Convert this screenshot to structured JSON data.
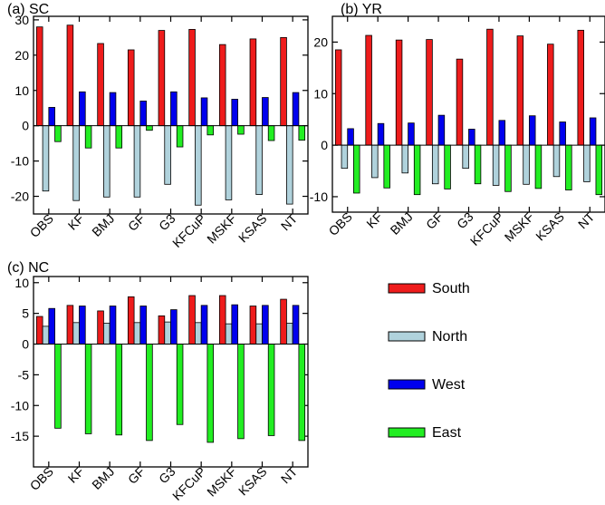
{
  "chart_data": [
    {
      "type": "bar",
      "title": "(a) SC",
      "categories": [
        "OBS",
        "KF",
        "BMJ",
        "GF",
        "G3",
        "KFCuP",
        "MSKF",
        "KSAS",
        "NT"
      ],
      "ylim": [
        -25,
        31
      ],
      "yticks": [
        -20,
        -10,
        0,
        10,
        20,
        30
      ],
      "series": [
        {
          "name": "South",
          "values": [
            28,
            28.5,
            23.3,
            21.5,
            27,
            27.3,
            23,
            24.6,
            25
          ]
        },
        {
          "name": "North",
          "values": [
            -18.5,
            -21.2,
            -20.2,
            -20.2,
            -16.6,
            -22.5,
            -21,
            -19.5,
            -22.2
          ]
        },
        {
          "name": "West",
          "values": [
            5.2,
            9.6,
            9.4,
            7,
            9.6,
            7.9,
            7.5,
            8,
            9.4
          ]
        },
        {
          "name": "East",
          "values": [
            -4.5,
            -6.3,
            -6.3,
            -1.3,
            -6,
            -2.6,
            -2.4,
            -4.2,
            -4.1
          ]
        }
      ]
    },
    {
      "type": "bar",
      "title": "(b) YR",
      "categories": [
        "OBS",
        "KF",
        "BMJ",
        "GF",
        "G3",
        "KFCuP",
        "MSKF",
        "KSAS",
        "NT"
      ],
      "ylim": [
        -13,
        25
      ],
      "yticks": [
        -10,
        0,
        10,
        20
      ],
      "series": [
        {
          "name": "South",
          "values": [
            18.5,
            21.3,
            20.4,
            20.5,
            16.7,
            22.5,
            21.2,
            19.6,
            22.3
          ]
        },
        {
          "name": "North",
          "values": [
            -4.5,
            -6.3,
            -5.4,
            -7.5,
            -4.5,
            -7.8,
            -7.6,
            -6.1,
            -7.1
          ]
        },
        {
          "name": "West",
          "values": [
            3.2,
            4.2,
            4.3,
            5.8,
            3.1,
            4.8,
            5.7,
            4.5,
            5.3
          ]
        },
        {
          "name": "East",
          "values": [
            -9.3,
            -8.3,
            -9.6,
            -8.5,
            -7.5,
            -9,
            -8.4,
            -8.7,
            -9.6
          ]
        }
      ]
    },
    {
      "type": "bar",
      "title": "(c) NC",
      "categories": [
        "OBS",
        "KF",
        "BMJ",
        "GF",
        "G3",
        "KFCuP",
        "MSKF",
        "KSAS",
        "NT"
      ],
      "ylim": [
        -20,
        11
      ],
      "yticks": [
        -15,
        -10,
        -5,
        0,
        5,
        10
      ],
      "series": [
        {
          "name": "South",
          "values": [
            4.5,
            6.3,
            5.4,
            7.7,
            4.6,
            7.9,
            7.9,
            6.2,
            7.3
          ]
        },
        {
          "name": "North",
          "values": [
            2.9,
            3.5,
            3.4,
            3.5,
            3.6,
            3.5,
            3.3,
            3.3,
            3.4
          ]
        },
        {
          "name": "West",
          "values": [
            5.8,
            6.2,
            6.2,
            6.2,
            5.6,
            6.3,
            6.4,
            6.3,
            6.3
          ]
        },
        {
          "name": "East",
          "values": [
            -13.7,
            -14.6,
            -14.8,
            -15.7,
            -13.1,
            -16,
            -15.4,
            -14.9,
            -15.7
          ]
        }
      ]
    }
  ],
  "legend": {
    "items": [
      {
        "label": "South",
        "color": "#ee1c1c"
      },
      {
        "label": "North",
        "color": "#b0d2dc"
      },
      {
        "label": "West",
        "color": "#0000ee"
      },
      {
        "label": "East",
        "color": "#22ee22"
      }
    ]
  }
}
